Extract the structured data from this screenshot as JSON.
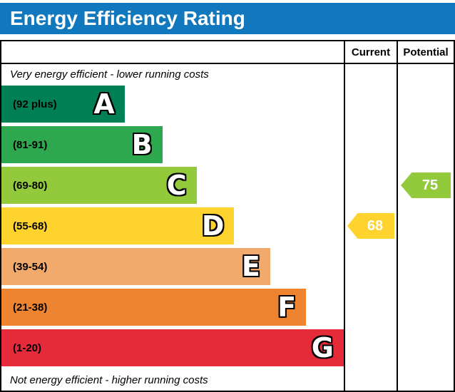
{
  "title": "Energy Efficiency Rating",
  "header": {
    "current_label": "Current",
    "potential_label": "Potential"
  },
  "notes": {
    "top": "Very energy efficient - lower running costs",
    "bottom": "Not energy efficient - higher running costs"
  },
  "bands": [
    {
      "letter": "A",
      "range": "(92 plus)",
      "color": "#008054",
      "width_pct": 36
    },
    {
      "letter": "B",
      "range": "(81-91)",
      "color": "#2ea84e",
      "width_pct": 47
    },
    {
      "letter": "C",
      "range": "(69-80)",
      "color": "#93ca3c",
      "width_pct": 57
    },
    {
      "letter": "D",
      "range": "(55-68)",
      "color": "#fed32e",
      "width_pct": 68
    },
    {
      "letter": "E",
      "range": "(39-54)",
      "color": "#f2a96c",
      "width_pct": 78.5
    },
    {
      "letter": "F",
      "range": "(21-38)",
      "color": "#ee8430",
      "width_pct": 89
    },
    {
      "letter": "G",
      "range": "(1-20)",
      "color": "#e52a39",
      "width_pct": 100
    }
  ],
  "ratings": {
    "current": {
      "value": "68",
      "band": "D",
      "color": "#fed32e"
    },
    "potential": {
      "value": "75",
      "band": "C",
      "color": "#93ca3c"
    }
  },
  "colors": {
    "title_bg": "#1278be",
    "title_fg": "#ffffff",
    "border": "#000000"
  },
  "chart_data": {
    "type": "bar",
    "title": "Energy Efficiency Rating",
    "categories": [
      "A (92 plus)",
      "B (81-91)",
      "C (69-80)",
      "D (55-68)",
      "E (39-54)",
      "F (21-38)",
      "G (1-20)"
    ],
    "values": [
      36,
      47,
      57,
      68,
      78.5,
      89,
      100
    ],
    "value_meaning": "schematic bar length as % of band area width",
    "annotations": [
      {
        "label": "Current",
        "value": 68,
        "band": "D"
      },
      {
        "label": "Potential",
        "value": 75,
        "band": "C"
      }
    ],
    "notes": [
      "Very energy efficient - lower running costs",
      "Not energy efficient - higher running costs"
    ],
    "legend": "off",
    "grid": "off"
  }
}
